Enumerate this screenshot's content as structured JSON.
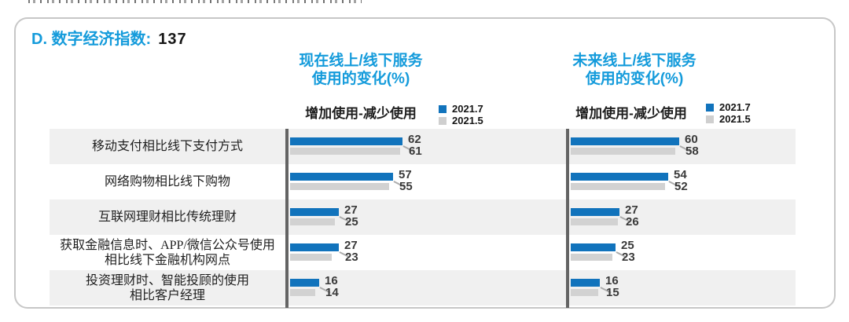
{
  "page": {
    "card_title": {
      "label": "D. 数字经济指数:",
      "value": "137"
    }
  },
  "colors": {
    "accent_blue": "#149BDB",
    "bar_blue": "#1173BC",
    "bar_gray": "#D2D2D2",
    "band_gray": "#F0F0F0",
    "axis_gray": "#646464",
    "value_text": "#3A3A3A"
  },
  "chart_data": [
    {
      "type": "bar",
      "orientation": "horizontal",
      "title_line1": "现在线上/线下服务",
      "title_line2": "使用的变化(%)",
      "axis_label": "增加使用-减少使用",
      "unit": "%",
      "grid": false,
      "legend_position": "top-right",
      "xlim": [
        0,
        130
      ],
      "categories": [
        [
          "移动支付相比线下支付方式"
        ],
        [
          "网络购物相比线下购物"
        ],
        [
          "互联网理财相比传统理财"
        ],
        [
          "获取金融信息时、APP/微信公众号使用",
          "相比线下金融机构网点"
        ],
        [
          "投资理财时、智能投顾的使用",
          "相比客户经理"
        ]
      ],
      "series": [
        {
          "name": "2021.7",
          "color": "#1173BC",
          "values": [
            62,
            57,
            27,
            27,
            16
          ]
        },
        {
          "name": "2021.5",
          "color": "#D2D2D2",
          "values": [
            61,
            55,
            25,
            23,
            14
          ]
        }
      ]
    },
    {
      "type": "bar",
      "orientation": "horizontal",
      "title_line1": "未来线上/线下服务",
      "title_line2": "使用的变化(%)",
      "axis_label": "增加使用-减少使用",
      "unit": "%",
      "grid": false,
      "legend_position": "top-right",
      "xlim": [
        0,
        130
      ],
      "categories": [
        [
          "移动支付相比线下支付方式"
        ],
        [
          "网络购物相比线下购物"
        ],
        [
          "互联网理财相比传统理财"
        ],
        [
          "获取金融信息时、APP/微信公众号使用",
          "相比线下金融机构网点"
        ],
        [
          "投资理财时、智能投顾的使用",
          "相比客户经理"
        ]
      ],
      "series": [
        {
          "name": "2021.7",
          "color": "#1173BC",
          "values": [
            60,
            54,
            27,
            25,
            16
          ]
        },
        {
          "name": "2021.5",
          "color": "#D2D2D2",
          "values": [
            58,
            52,
            26,
            23,
            15
          ]
        }
      ]
    }
  ]
}
